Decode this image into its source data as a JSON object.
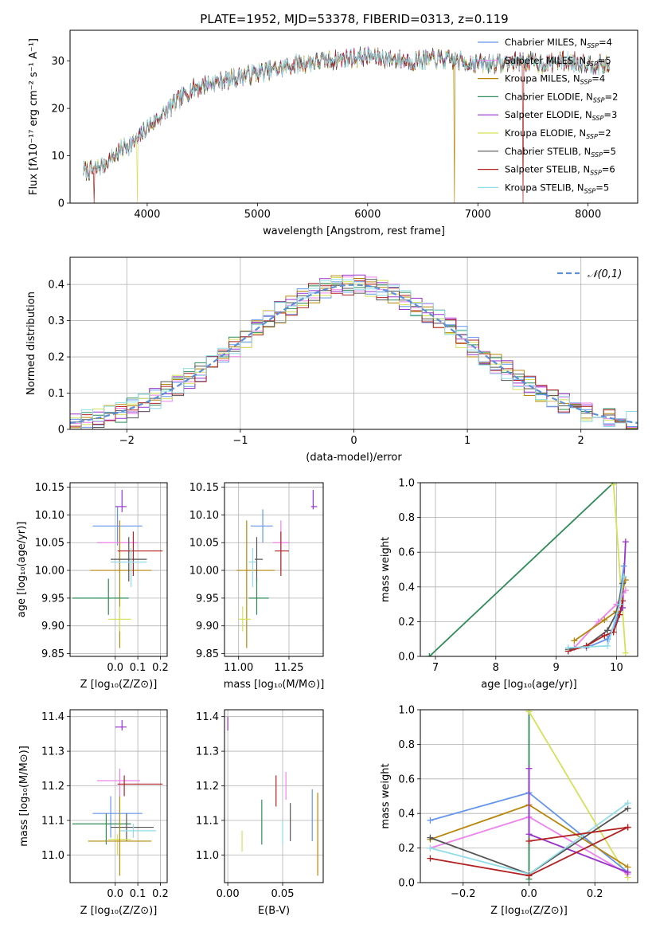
{
  "title": "PLATE=1952, MJD=53378, FIBERID=0313, z=0.119",
  "colors": {
    "Chabrier MILES": "#6495ed",
    "Salpeter MILES": "#ee82ee",
    "Kroupa MILES": "#b8860b",
    "Chabrier ELODIE": "#2e8b57",
    "Salpeter ELODIE": "#9932cc",
    "Kroupa ELODIE": "#d4e157",
    "Chabrier STELIB": "#555555",
    "Salpeter STELIB": "#b22222",
    "Kroupa STELIB": "#8fdde8"
  },
  "chart_data": [
    {
      "id": "spectrum",
      "type": "line",
      "title": "PLATE=1952, MJD=53378, FIBERID=0313, z=0.119",
      "xlabel": "wavelength [Angstrom, rest frame]",
      "ylabel": "Flux [fλ10⁻¹⁷ erg cm⁻² s⁻¹ A⁻¹]",
      "xlim": [
        3300,
        8450
      ],
      "ylim": [
        0,
        36.5
      ],
      "xticks": [
        4000,
        5000,
        6000,
        7000,
        8000
      ],
      "yticks": [
        0,
        10,
        20,
        30
      ],
      "grid": false,
      "legend_position": "top-right",
      "legend": [
        {
          "series": "Chabrier MILES",
          "label": "Chabrier MILES, N",
          "sub": "SSP",
          "post": "=4"
        },
        {
          "series": "Salpeter MILES",
          "label": "Salpeter MILES, N",
          "sub": "SSP",
          "post": "=5"
        },
        {
          "series": "Kroupa MILES",
          "label": "Kroupa MILES, N",
          "sub": "SSP",
          "post": "=4"
        },
        {
          "series": "Chabrier ELODIE",
          "label": "Chabrier ELODIE, N",
          "sub": "SSP",
          "post": "=2"
        },
        {
          "series": "Salpeter ELODIE",
          "label": "Salpeter ELODIE, N",
          "sub": "SSP",
          "post": "=3"
        },
        {
          "series": "Kroupa ELODIE",
          "label": "Kroupa ELODIE, N",
          "sub": "SSP",
          "post": "=2"
        },
        {
          "series": "Chabrier STELIB",
          "label": "Chabrier STELIB, N",
          "sub": "SSP",
          "post": "=5"
        },
        {
          "series": "Salpeter STELIB",
          "label": "Salpeter STELIB, N",
          "sub": "SSP",
          "post": "=6"
        },
        {
          "series": "Kroupa STELIB",
          "label": "Kroupa STELIB, N",
          "sub": "SSP",
          "post": "=5"
        }
      ],
      "continuum": {
        "x": [
          3420,
          3500,
          3600,
          3700,
          3800,
          3900,
          4000,
          4100,
          4200,
          4300,
          4400,
          4600,
          4800,
          5000,
          5200,
          5400,
          5600,
          5800,
          6000,
          6200,
          6400,
          6600,
          6800,
          7000,
          7200,
          7400,
          7600,
          7800,
          8000,
          8200
        ],
        "y": [
          7,
          6.8,
          8,
          10,
          12,
          13,
          16,
          18,
          20,
          22,
          24,
          25.5,
          26.5,
          27.5,
          28.5,
          29.5,
          30,
          30.5,
          31,
          30.5,
          30,
          30.5,
          30,
          29.5,
          29.5,
          30,
          29.5,
          30,
          29.5,
          29
        ]
      },
      "drops": [
        {
          "series": "Salpeter STELIB",
          "x": 3520
        },
        {
          "series": "Kroupa ELODIE",
          "x": 3910
        },
        {
          "series": "Kroupa MILES",
          "x": 6790
        },
        {
          "series": "Salpeter STELIB",
          "x": 7410
        }
      ]
    },
    {
      "id": "residuals",
      "type": "line",
      "xlabel": "(data-model)/error",
      "ylabel": "Normed distribution",
      "xlim": [
        -2.5,
        2.5
      ],
      "ylim": [
        0,
        0.475
      ],
      "xticks": [
        -2,
        -1,
        0,
        1,
        2
      ],
      "yticks": [
        0.0,
        0.1,
        0.2,
        0.3,
        0.4
      ],
      "grid": true,
      "legend_position": "top-right",
      "reference_label": "𝒩(0,1)",
      "reference_mean": 0,
      "reference_sigma": 1
    },
    {
      "id": "age-vs-Z",
      "type": "scatter",
      "xlabel": "Z [log₁₀(Z/Z⊙)]",
      "ylabel": "age  [log₁₀(age/yr)]",
      "xlim": [
        -0.2,
        0.23
      ],
      "ylim": [
        9.845,
        10.158
      ],
      "xticks": [
        0.0,
        0.1,
        0.2
      ],
      "xticklabels": [
        "0.0",
        "0.1",
        "0.2"
      ],
      "yticks": [
        9.85,
        9.9,
        9.95,
        10.0,
        10.05,
        10.1,
        10.15
      ],
      "yticklabels": [
        "9.85",
        "9.90",
        "9.95",
        "10.00",
        "10.05",
        "10.10",
        "10.15"
      ],
      "grid": true,
      "points": [
        {
          "series": "Salpeter ELODIE",
          "x": 0.03,
          "xlo": 0.0,
          "xhi": 0.05,
          "y": 10.115,
          "ylo": 10.105,
          "yhi": 10.145
        },
        {
          "series": "Chabrier MILES",
          "x": 0.01,
          "xlo": -0.1,
          "xhi": 0.12,
          "y": 10.08,
          "ylo": 10.045,
          "yhi": 10.115
        },
        {
          "series": "Salpeter MILES",
          "x": 0.02,
          "xlo": -0.08,
          "xhi": 0.1,
          "y": 10.05,
          "ylo": 10.0,
          "yhi": 10.09
        },
        {
          "series": "Kroupa MILES",
          "x": 0.02,
          "xlo": -0.11,
          "xhi": 0.16,
          "y": 10.0,
          "ylo": 9.86,
          "yhi": 10.09
        },
        {
          "series": "Chabrier STELIB",
          "x": 0.06,
          "xlo": -0.02,
          "xhi": 0.14,
          "y": 10.02,
          "ylo": 9.98,
          "yhi": 10.06
        },
        {
          "series": "Salpeter STELIB",
          "x": 0.08,
          "xlo": 0.01,
          "xhi": 0.21,
          "y": 10.035,
          "ylo": 9.99,
          "yhi": 10.07
        },
        {
          "series": "Kroupa STELIB",
          "x": 0.07,
          "xlo": -0.02,
          "xhi": 0.14,
          "y": 10.015,
          "ylo": 9.97,
          "yhi": 10.04
        },
        {
          "series": "Chabrier ELODIE",
          "x": -0.03,
          "xlo": -0.19,
          "xhi": 0.06,
          "y": 9.95,
          "ylo": 9.92,
          "yhi": 9.985
        },
        {
          "series": "Kroupa ELODIE",
          "x": 0.02,
          "xlo": -0.03,
          "xhi": 0.07,
          "y": 9.912,
          "ylo": 9.89,
          "yhi": 9.935
        }
      ]
    },
    {
      "id": "age-vs-mass",
      "type": "scatter",
      "xlabel": "mass [log₁₀(M/M⊙)]",
      "xlim": [
        10.93,
        11.42
      ],
      "ylim": [
        9.845,
        10.158
      ],
      "xticks": [
        11.0,
        11.25
      ],
      "xticklabels": [
        "11.00",
        "11.25"
      ],
      "yticks": [
        9.85,
        9.9,
        9.95,
        10.0,
        10.05,
        10.1,
        10.15
      ],
      "yticklabels": [
        "9.85",
        "9.90",
        "9.95",
        "10.00",
        "10.05",
        "10.10",
        "10.15"
      ],
      "grid": true,
      "points": [
        {
          "series": "Salpeter ELODIE",
          "x": 11.37,
          "xlo": 11.36,
          "xhi": 11.39,
          "y": 10.115,
          "ylo": 10.11,
          "yhi": 10.145
        },
        {
          "series": "Chabrier MILES",
          "x": 11.12,
          "xlo": 11.06,
          "xhi": 11.17,
          "y": 10.08,
          "ylo": 10.05,
          "yhi": 10.11
        },
        {
          "series": "Salpeter MILES",
          "x": 11.21,
          "xlo": 11.17,
          "xhi": 11.25,
          "y": 10.05,
          "ylo": 10.0,
          "yhi": 10.09
        },
        {
          "series": "Kroupa MILES",
          "x": 11.04,
          "xlo": 10.99,
          "xhi": 11.18,
          "y": 10.0,
          "ylo": 9.86,
          "yhi": 10.09
        },
        {
          "series": "Chabrier STELIB",
          "x": 11.09,
          "xlo": 11.08,
          "xhi": 11.12,
          "y": 10.02,
          "ylo": 9.98,
          "yhi": 10.06
        },
        {
          "series": "Salpeter STELIB",
          "x": 11.21,
          "xlo": 11.18,
          "xhi": 11.25,
          "y": 10.035,
          "ylo": 9.99,
          "yhi": 10.07
        },
        {
          "series": "Kroupa STELIB",
          "x": 11.07,
          "xlo": 11.05,
          "xhi": 11.09,
          "y": 10.015,
          "ylo": 9.97,
          "yhi": 10.04
        },
        {
          "series": "Chabrier ELODIE",
          "x": 11.09,
          "xlo": 11.05,
          "xhi": 11.15,
          "y": 9.95,
          "ylo": 9.92,
          "yhi": 9.985
        },
        {
          "series": "Kroupa ELODIE",
          "x": 11.02,
          "xlo": 11.0,
          "xhi": 11.06,
          "y": 9.912,
          "ylo": 9.89,
          "yhi": 9.935
        }
      ]
    },
    {
      "id": "weight-vs-age",
      "type": "line",
      "xlabel": "age  [log₁₀(age/yr)]",
      "ylabel": "mass weight",
      "xlim": [
        6.75,
        10.35
      ],
      "ylim": [
        0,
        1.0
      ],
      "xticks": [
        7,
        8,
        9,
        10
      ],
      "yticks": [
        0.0,
        0.2,
        0.4,
        0.6,
        0.8,
        1.0
      ],
      "yticklabels": [
        "0.0",
        "0.2",
        "0.4",
        "0.6",
        "0.8",
        "1.0"
      ],
      "grid": true,
      "series": [
        {
          "series": "Chabrier ELODIE",
          "x": [
            6.9,
            9.95
          ],
          "y": [
            0.0,
            1.0
          ]
        },
        {
          "series": "Kroupa ELODIE",
          "x": [
            9.95,
            10.15
          ],
          "y": [
            0.99,
            0.02
          ]
        },
        {
          "series": "Salpeter ELODIE",
          "x": [
            9.85,
            10.1,
            10.15
          ],
          "y": [
            0.1,
            0.28,
            0.66
          ]
        },
        {
          "series": "Chabrier MILES",
          "x": [
            9.5,
            9.85,
            10.0,
            10.12
          ],
          "y": [
            0.05,
            0.1,
            0.2,
            0.52
          ]
        },
        {
          "series": "Salpeter MILES",
          "x": [
            9.3,
            9.7,
            10.0,
            10.15
          ],
          "y": [
            0.05,
            0.2,
            0.3,
            0.38
          ]
        },
        {
          "series": "Kroupa MILES",
          "x": [
            9.3,
            9.8,
            10.0,
            10.15
          ],
          "y": [
            0.09,
            0.21,
            0.26,
            0.44
          ]
        },
        {
          "series": "Chabrier STELIB",
          "x": [
            9.2,
            9.5,
            9.85,
            10.0,
            10.1
          ],
          "y": [
            0.04,
            0.06,
            0.15,
            0.25,
            0.42
          ]
        },
        {
          "series": "Salpeter STELIB",
          "x": [
            9.2,
            9.5,
            9.8,
            9.95,
            10.05,
            10.1
          ],
          "y": [
            0.03,
            0.06,
            0.12,
            0.14,
            0.24,
            0.32
          ]
        },
        {
          "series": "Kroupa STELIB",
          "x": [
            9.2,
            9.85,
            10.05,
            10.12
          ],
          "y": [
            0.05,
            0.06,
            0.3,
            0.46
          ]
        }
      ]
    },
    {
      "id": "mass-vs-Z",
      "type": "scatter",
      "xlabel": "Z [log₁₀(Z/Z⊙)]",
      "ylabel": "mass [log₁₀(M/M⊙)]",
      "xlim": [
        -0.2,
        0.23
      ],
      "ylim": [
        10.92,
        11.42
      ],
      "xticks": [
        0.0,
        0.1,
        0.2
      ],
      "xticklabels": [
        "0.0",
        "0.1",
        "0.2"
      ],
      "yticks": [
        11.0,
        11.1,
        11.2,
        11.3,
        11.4
      ],
      "yticklabels": [
        "11.0",
        "11.1",
        "11.2",
        "11.3",
        "11.4"
      ],
      "grid": true,
      "points": [
        {
          "series": "Salpeter ELODIE",
          "x": 0.03,
          "xlo": 0.0,
          "xhi": 0.05,
          "y": 11.37,
          "ylo": 11.36,
          "yhi": 11.39
        },
        {
          "series": "Salpeter MILES",
          "x": 0.02,
          "xlo": -0.08,
          "xhi": 0.11,
          "y": 11.215,
          "ylo": 11.17,
          "yhi": 11.25
        },
        {
          "series": "Salpeter STELIB",
          "x": 0.04,
          "xlo": 0.01,
          "xhi": 0.21,
          "y": 11.205,
          "ylo": 11.17,
          "yhi": 11.23
        },
        {
          "series": "Chabrier MILES",
          "x": -0.02,
          "xlo": -0.1,
          "xhi": 0.12,
          "y": 11.12,
          "ylo": 11.05,
          "yhi": 11.17
        },
        {
          "series": "Chabrier ELODIE",
          "x": -0.04,
          "xlo": -0.19,
          "xhi": 0.07,
          "y": 11.09,
          "ylo": 11.03,
          "yhi": 11.12
        },
        {
          "series": "Chabrier STELIB",
          "x": 0.05,
          "xlo": -0.02,
          "xhi": 0.17,
          "y": 11.08,
          "ylo": 11.04,
          "yhi": 11.12
        },
        {
          "series": "Kroupa STELIB",
          "x": 0.08,
          "xlo": 0.02,
          "xhi": 0.18,
          "y": 11.07,
          "ylo": 11.05,
          "yhi": 11.09
        },
        {
          "series": "Kroupa ELODIE",
          "x": 0.01,
          "xlo": -0.03,
          "xhi": 0.07,
          "y": 11.045,
          "ylo": 11.0,
          "yhi": 11.06
        },
        {
          "series": "Kroupa MILES",
          "x": 0.02,
          "xlo": -0.12,
          "xhi": 0.16,
          "y": 11.04,
          "ylo": 10.94,
          "yhi": 11.17
        }
      ]
    },
    {
      "id": "mass-vs-EBV",
      "type": "scatter",
      "xlabel": "E(B-V)",
      "xlim": [
        -0.003,
        0.087
      ],
      "ylim": [
        10.92,
        11.42
      ],
      "xticks": [
        0.0,
        0.05
      ],
      "xticklabels": [
        "0.00",
        "0.05"
      ],
      "yticks": [
        11.0,
        11.1,
        11.2,
        11.3,
        11.4
      ],
      "yticklabels": [
        "11.0",
        "11.1",
        "11.2",
        "11.3",
        "11.4"
      ],
      "grid": true,
      "points": [
        {
          "series": "Salpeter ELODIE",
          "x": 0.0,
          "y": 11.37,
          "ylo": 11.36,
          "yhi": 11.4
        },
        {
          "series": "Kroupa ELODIE",
          "x": 0.013,
          "y": 11.04,
          "ylo": 11.01,
          "yhi": 11.07
        },
        {
          "series": "Chabrier ELODIE",
          "x": 0.031,
          "y": 11.09,
          "ylo": 11.03,
          "yhi": 11.16
        },
        {
          "series": "Salpeter STELIB",
          "x": 0.044,
          "y": 11.185,
          "ylo": 11.14,
          "yhi": 11.23
        },
        {
          "series": "Kroupa STELIB",
          "x": 0.05,
          "y": 11.07,
          "ylo": 11.03,
          "yhi": 11.1
        },
        {
          "series": "Salpeter MILES",
          "x": 0.053,
          "y": 11.2,
          "ylo": 11.16,
          "yhi": 11.24
        },
        {
          "series": "Chabrier STELIB",
          "x": 0.057,
          "y": 11.09,
          "ylo": 11.04,
          "yhi": 11.15
        },
        {
          "series": "Chabrier MILES",
          "x": 0.077,
          "y": 11.12,
          "ylo": 11.04,
          "yhi": 11.19
        },
        {
          "series": "Kroupa MILES",
          "x": 0.082,
          "y": 11.06,
          "ylo": 10.94,
          "yhi": 11.18
        }
      ]
    },
    {
      "id": "weight-vs-Z",
      "type": "line",
      "xlabel": "Z [log₁₀(Z/Z⊙)]",
      "ylabel": "mass weight",
      "xlim": [
        -0.33,
        0.33
      ],
      "ylim": [
        0,
        1.0
      ],
      "xticks": [
        -0.2,
        0.0,
        0.2
      ],
      "xticklabels": [
        "−0.2",
        "0.0",
        "0.2"
      ],
      "yticks": [
        0.0,
        0.2,
        0.4,
        0.6,
        0.8,
        1.0
      ],
      "yticklabels": [
        "0.0",
        "0.2",
        "0.4",
        "0.6",
        "0.8",
        "1.0"
      ],
      "grid": true,
      "series": [
        {
          "series": "Chabrier ELODIE",
          "x": [
            0.0,
            0.0
          ],
          "y": [
            0.02,
            0.99
          ]
        },
        {
          "series": "Kroupa ELODIE",
          "x": [
            0.0,
            0.3
          ],
          "y": [
            0.99,
            0.03
          ]
        },
        {
          "series": "Chabrier MILES",
          "x": [
            -0.3,
            0.0,
            0.3
          ],
          "y": [
            0.36,
            0.52,
            0.06
          ]
        },
        {
          "series": "Kroupa MILES",
          "x": [
            -0.3,
            0.0,
            0.3
          ],
          "y": [
            0.25,
            0.45,
            0.09
          ]
        },
        {
          "series": "Salpeter MILES",
          "x": [
            -0.3,
            0.0,
            0.3
          ],
          "y": [
            0.2,
            0.38,
            0.05
          ]
        },
        {
          "series": "Salpeter ELODIE",
          "x": [
            0.0,
            0.0,
            0.3
          ],
          "y": [
            0.66,
            0.28,
            0.06
          ]
        },
        {
          "series": "Chabrier STELIB",
          "x": [
            -0.3,
            0.0,
            0.3
          ],
          "y": [
            0.26,
            0.05,
            0.43
          ]
        },
        {
          "series": "Kroupa STELIB",
          "x": [
            -0.3,
            0.0,
            0.3
          ],
          "y": [
            0.2,
            0.05,
            0.46
          ]
        },
        {
          "series": "Salpeter STELIB",
          "x": [
            -0.3,
            0.0,
            0.3
          ],
          "y": [
            0.14,
            0.04,
            0.32
          ]
        },
        {
          "series": "Salpeter STELIB",
          "x": [
            0.0,
            0.3
          ],
          "y": [
            0.24,
            0.32
          ]
        }
      ]
    }
  ]
}
